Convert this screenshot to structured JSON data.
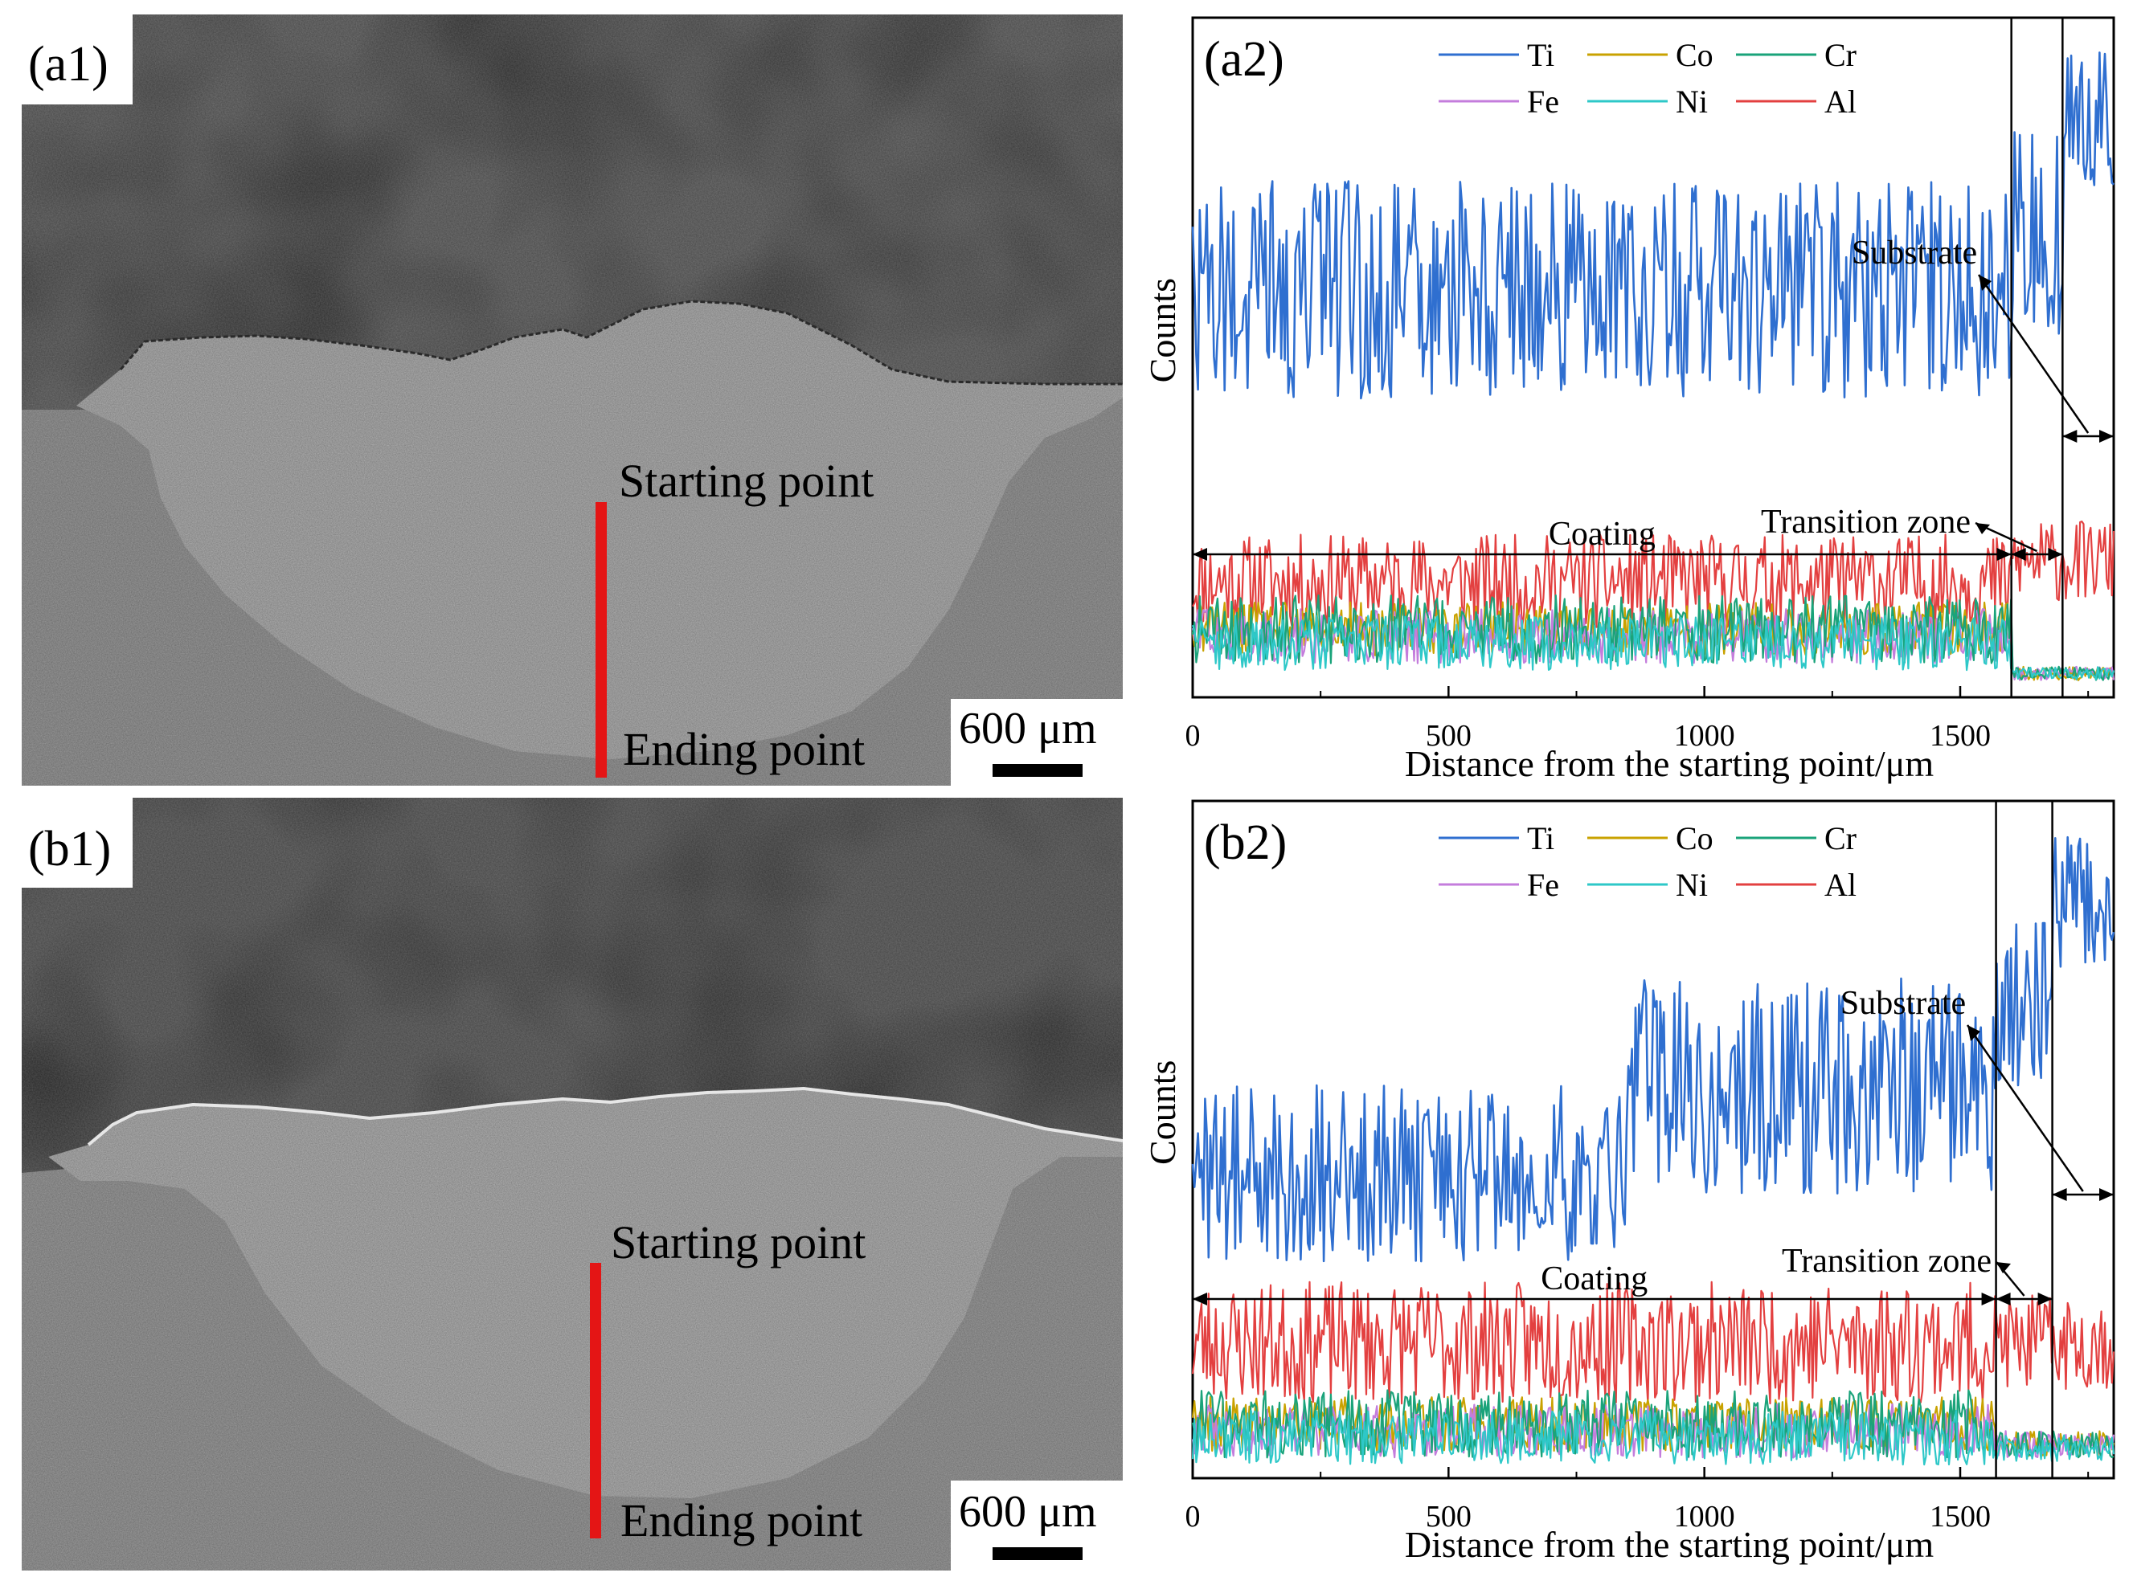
{
  "panels": {
    "a1": {
      "label": "(a1)",
      "start_text": "Starting point",
      "end_text": "Ending point",
      "scale_text": "600 μm",
      "colors": {
        "top_region": "#5e5e5e",
        "coating": "#a9a9a9",
        "substrate": "#8f8f8f",
        "line_marker": "#e41515"
      }
    },
    "b1": {
      "label": "(b1)",
      "start_text": "Starting point",
      "end_text": "Ending point",
      "scale_text": "600 μm",
      "colors": {
        "top_region": "#585858",
        "coating": "#ababab",
        "substrate": "#929292",
        "line_marker": "#e41515"
      }
    }
  },
  "chart_data": [
    {
      "type": "line",
      "panel_label": "(a2)",
      "xlabel": "Distance from the starting point/μm",
      "ylabel": "Counts",
      "xlim": [
        0,
        1800
      ],
      "xticks": [
        0,
        500,
        1000,
        1500
      ],
      "yticks_shown": false,
      "legend": {
        "placement": "top-center",
        "columns": 3
      },
      "series": [
        {
          "name": "Ti",
          "color": "#2f6fd0",
          "segments": [
            [
              0,
              1600,
              0.6,
              0.16
            ],
            [
              1600,
              1700,
              0.68,
              0.16
            ],
            [
              1700,
              1800,
              0.85,
              0.1
            ]
          ]
        },
        {
          "name": "Co",
          "color": "#c9a200",
          "segments": [
            [
              0,
              1600,
              0.1,
              0.04
            ],
            [
              1600,
              1800,
              0.035,
              0.01
            ]
          ]
        },
        {
          "name": "Cr",
          "color": "#1aa37a",
          "segments": [
            [
              0,
              1600,
              0.1,
              0.05
            ],
            [
              1600,
              1800,
              0.035,
              0.01
            ]
          ]
        },
        {
          "name": "Fe",
          "color": "#c47ddc",
          "segments": [
            [
              0,
              1600,
              0.09,
              0.04
            ],
            [
              1600,
              1800,
              0.035,
              0.01
            ]
          ]
        },
        {
          "name": "Ni",
          "color": "#2ec8c8",
          "segments": [
            [
              0,
              1600,
              0.08,
              0.04
            ],
            [
              1600,
              1800,
              0.035,
              0.01
            ]
          ]
        },
        {
          "name": "Al",
          "color": "#e34040",
          "segments": [
            [
              0,
              1600,
              0.17,
              0.07
            ],
            [
              1600,
              1800,
              0.2,
              0.06
            ]
          ]
        }
      ],
      "zone_boundaries": [
        1600,
        1700
      ],
      "annotations": {
        "coating": "Coating",
        "transition": "Transition zone",
        "substrate": "Substrate"
      }
    },
    {
      "type": "line",
      "panel_label": "(b2)",
      "xlabel": "Distance from the starting point/μm",
      "ylabel": "Counts",
      "xlim": [
        0,
        1800
      ],
      "xticks": [
        0,
        500,
        1000,
        1500
      ],
      "yticks_shown": false,
      "legend": {
        "placement": "top-center",
        "columns": 3
      },
      "series": [
        {
          "name": "Ti",
          "color": "#2f6fd0",
          "segments": [
            [
              0,
              850,
              0.45,
              0.13
            ],
            [
              850,
              1570,
              0.58,
              0.16
            ],
            [
              1570,
              1680,
              0.7,
              0.12
            ],
            [
              1680,
              1800,
              0.85,
              0.1
            ]
          ]
        },
        {
          "name": "Co",
          "color": "#c9a200",
          "segments": [
            [
              0,
              1570,
              0.08,
              0.04
            ],
            [
              1570,
              1800,
              0.05,
              0.02
            ]
          ]
        },
        {
          "name": "Cr",
          "color": "#1aa37a",
          "segments": [
            [
              0,
              1570,
              0.08,
              0.05
            ],
            [
              1570,
              1800,
              0.05,
              0.02
            ]
          ]
        },
        {
          "name": "Fe",
          "color": "#c47ddc",
          "segments": [
            [
              0,
              1570,
              0.07,
              0.04
            ],
            [
              1570,
              1800,
              0.05,
              0.02
            ]
          ]
        },
        {
          "name": "Ni",
          "color": "#2ec8c8",
          "segments": [
            [
              0,
              1570,
              0.06,
              0.04
            ],
            [
              1570,
              1800,
              0.045,
              0.02
            ]
          ]
        },
        {
          "name": "Al",
          "color": "#e34040",
          "segments": [
            [
              0,
              1570,
              0.2,
              0.09
            ],
            [
              1570,
              1800,
              0.2,
              0.07
            ]
          ]
        }
      ],
      "zone_boundaries": [
        1570,
        1680
      ],
      "annotations": {
        "coating": "Coating",
        "transition": "Transition zone",
        "substrate": "Substrate"
      }
    }
  ]
}
